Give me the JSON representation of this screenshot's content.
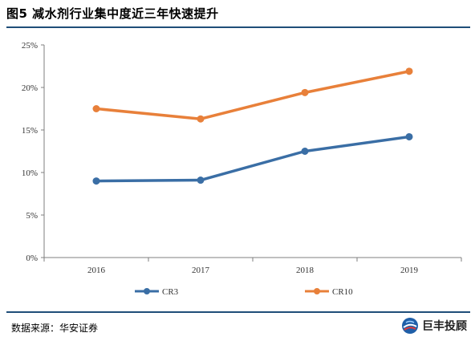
{
  "header": {
    "title": "图5 减水剂行业集中度近三年快速提升"
  },
  "footer": {
    "source": "数据来源：华安证券",
    "brand": "巨丰投顾"
  },
  "chart_data": {
    "type": "line",
    "title": "图5 减水剂行业集中度近三年快速提升",
    "xlabel": "",
    "ylabel": "",
    "categories": [
      "2016",
      "2017",
      "2018",
      "2019"
    ],
    "yticks": [
      "0%",
      "5%",
      "10%",
      "15%",
      "20%",
      "25%"
    ],
    "ylim": [
      0,
      25
    ],
    "grid": false,
    "legend_position": "bottom",
    "series": [
      {
        "name": "CR3",
        "values": [
          9.0,
          9.1,
          12.5,
          14.2
        ],
        "color": "#3a6ea5"
      },
      {
        "name": "CR10",
        "values": [
          17.5,
          16.3,
          19.4,
          21.9
        ],
        "color": "#e8803a"
      }
    ]
  },
  "colors": {
    "rule": "#1f4e79",
    "axis": "#7f7f7f"
  },
  "icons": {
    "brand_logo": "globe-logo-icon"
  }
}
